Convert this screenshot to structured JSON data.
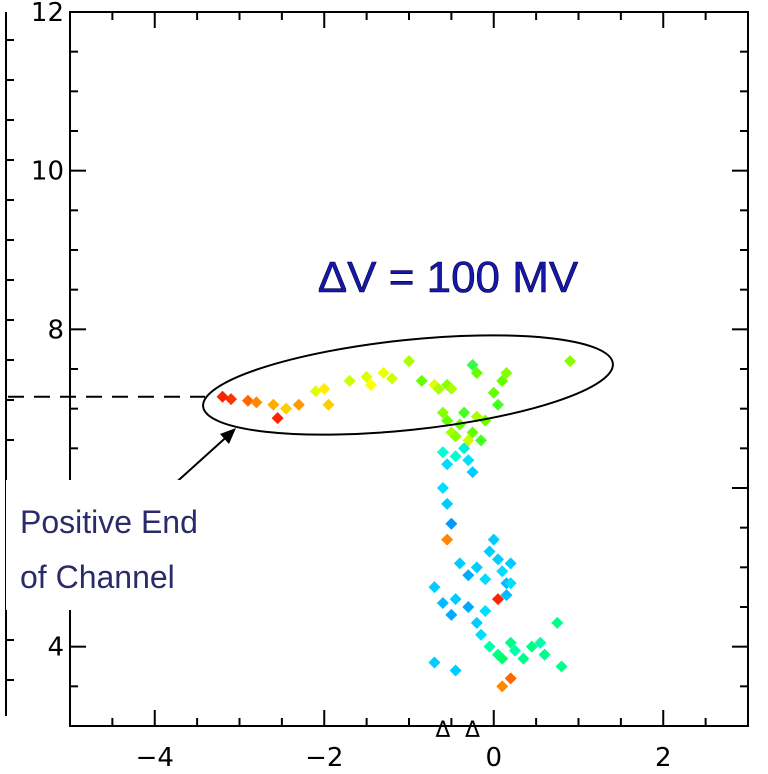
{
  "chart_data": {
    "type": "scatter",
    "title": "",
    "xlabel": "",
    "ylabel": "",
    "xlim": [
      -5,
      3.0
    ],
    "ylim": [
      3.0,
      12.0
    ],
    "x_ticks": [
      -4,
      -2,
      0,
      2
    ],
    "x_tick_labels": [
      "−4",
      "−2",
      "0",
      "2"
    ],
    "y_ticks": [
      4,
      8,
      10,
      12
    ],
    "y_tick_labels": [
      "4",
      "8",
      "10",
      "12"
    ],
    "grid": false,
    "reference_line_y": 7.15,
    "annotation_delta_v": "ΔV = 100 MV",
    "annotation_positive_end_line1": "Positive End",
    "annotation_positive_end_line2": "of Channel",
    "markers_x_axis": [
      -0.6,
      -0.25
    ],
    "marker_symbol": "Δ",
    "series": [
      {
        "points": [
          [
            -3.2,
            7.15,
            "#ff2200"
          ],
          [
            -3.1,
            7.12,
            "#ff3300"
          ],
          [
            -2.9,
            7.1,
            "#ff6600"
          ],
          [
            -2.8,
            7.08,
            "#ff8800"
          ],
          [
            -2.6,
            7.05,
            "#ffaa00"
          ],
          [
            -2.55,
            6.88,
            "#ff2200"
          ],
          [
            -2.45,
            7.0,
            "#ffcc00"
          ],
          [
            -2.3,
            7.05,
            "#ff9900"
          ],
          [
            -2.1,
            7.22,
            "#ddff00"
          ],
          [
            -2.0,
            7.25,
            "#ffee00"
          ],
          [
            -1.95,
            7.05,
            "#ffcc00"
          ],
          [
            -1.7,
            7.35,
            "#ccff00"
          ],
          [
            -1.5,
            7.4,
            "#ddff00"
          ],
          [
            -1.45,
            7.3,
            "#ffff00"
          ],
          [
            -1.3,
            7.45,
            "#eeff00"
          ],
          [
            -1.2,
            7.38,
            "#ccff00"
          ],
          [
            -1.0,
            7.6,
            "#aaff00"
          ],
          [
            -0.85,
            7.35,
            "#66ff00"
          ],
          [
            -0.7,
            7.3,
            "#ddff00"
          ],
          [
            -0.65,
            7.25,
            "#aaff00"
          ],
          [
            -0.55,
            7.3,
            "#88ff00"
          ],
          [
            -0.5,
            7.25,
            "#aaff00"
          ],
          [
            -0.25,
            7.55,
            "#33ff44"
          ],
          [
            -0.2,
            7.45,
            "#66ff00"
          ],
          [
            0.0,
            7.2,
            "#66ff00"
          ],
          [
            0.05,
            7.05,
            "#44ff22"
          ],
          [
            0.1,
            7.35,
            "#66ff00"
          ],
          [
            0.15,
            7.45,
            "#88ff00"
          ],
          [
            0.9,
            7.6,
            "#88ff00"
          ],
          [
            -0.6,
            6.95,
            "#88ff00"
          ],
          [
            -0.55,
            6.85,
            "#66ff00"
          ],
          [
            -0.5,
            6.7,
            "#aaff00"
          ],
          [
            -0.45,
            6.65,
            "#88ff00"
          ],
          [
            -0.4,
            6.8,
            "#66ff00"
          ],
          [
            -0.35,
            6.95,
            "#44ff22"
          ],
          [
            -0.3,
            6.6,
            "#ccff00"
          ],
          [
            -0.25,
            6.7,
            "#66ff00"
          ],
          [
            -0.2,
            6.9,
            "#aaff00"
          ],
          [
            -0.15,
            6.6,
            "#44ff22"
          ],
          [
            -0.1,
            6.85,
            "#66ff00"
          ],
          [
            -0.6,
            6.45,
            "#00ffcc"
          ],
          [
            -0.55,
            6.3,
            "#00ddff"
          ],
          [
            -0.45,
            6.4,
            "#00ffcc"
          ],
          [
            -0.35,
            6.5,
            "#00eedd"
          ],
          [
            -0.3,
            6.35,
            "#00ddff"
          ],
          [
            -0.25,
            6.2,
            "#00ccff"
          ],
          [
            -0.6,
            6.0,
            "#00ddff"
          ],
          [
            -0.55,
            5.8,
            "#00ccff"
          ],
          [
            -0.5,
            5.55,
            "#0099ff"
          ],
          [
            -0.55,
            5.35,
            "#ff8800"
          ],
          [
            -0.4,
            5.05,
            "#00ccff"
          ],
          [
            -0.3,
            4.9,
            "#00aaff"
          ],
          [
            -0.2,
            5.0,
            "#00ccff"
          ],
          [
            -0.1,
            4.85,
            "#00ddff"
          ],
          [
            -0.05,
            5.2,
            "#00ccff"
          ],
          [
            0.0,
            5.35,
            "#00ccff"
          ],
          [
            0.05,
            5.1,
            "#00ccff"
          ],
          [
            0.1,
            4.95,
            "#00ddff"
          ],
          [
            0.15,
            4.8,
            "#00bbff"
          ],
          [
            0.2,
            5.05,
            "#00ccff"
          ],
          [
            -0.7,
            4.75,
            "#00ccff"
          ],
          [
            -0.6,
            4.55,
            "#00bbff"
          ],
          [
            -0.5,
            4.4,
            "#00aaff"
          ],
          [
            -0.45,
            4.6,
            "#00ccff"
          ],
          [
            -0.3,
            4.5,
            "#00aaff"
          ],
          [
            -0.2,
            4.3,
            "#00ccff"
          ],
          [
            -0.1,
            4.45,
            "#00ddff"
          ],
          [
            0.05,
            4.6,
            "#ff2200"
          ],
          [
            0.15,
            4.65,
            "#00bbff"
          ],
          [
            0.2,
            4.8,
            "#00ddff"
          ],
          [
            -0.15,
            4.15,
            "#00ddff"
          ],
          [
            -0.05,
            4.0,
            "#00ffaa"
          ],
          [
            0.05,
            3.9,
            "#00ff88"
          ],
          [
            0.1,
            3.85,
            "#00ff66"
          ],
          [
            0.2,
            4.05,
            "#00ff88"
          ],
          [
            0.25,
            3.95,
            "#00ffaa"
          ],
          [
            0.35,
            3.85,
            "#00ff88"
          ],
          [
            0.45,
            4.0,
            "#00ff88"
          ],
          [
            0.55,
            4.05,
            "#00ffaa"
          ],
          [
            0.6,
            3.9,
            "#00ff88"
          ],
          [
            0.8,
            3.75,
            "#00ff88"
          ],
          [
            0.75,
            4.3,
            "#00ff88"
          ],
          [
            -0.7,
            3.8,
            "#00ccff"
          ],
          [
            -0.45,
            3.7,
            "#00ccff"
          ],
          [
            0.1,
            3.5,
            "#ff8800"
          ],
          [
            0.2,
            3.6,
            "#ff6600"
          ]
        ]
      }
    ]
  }
}
